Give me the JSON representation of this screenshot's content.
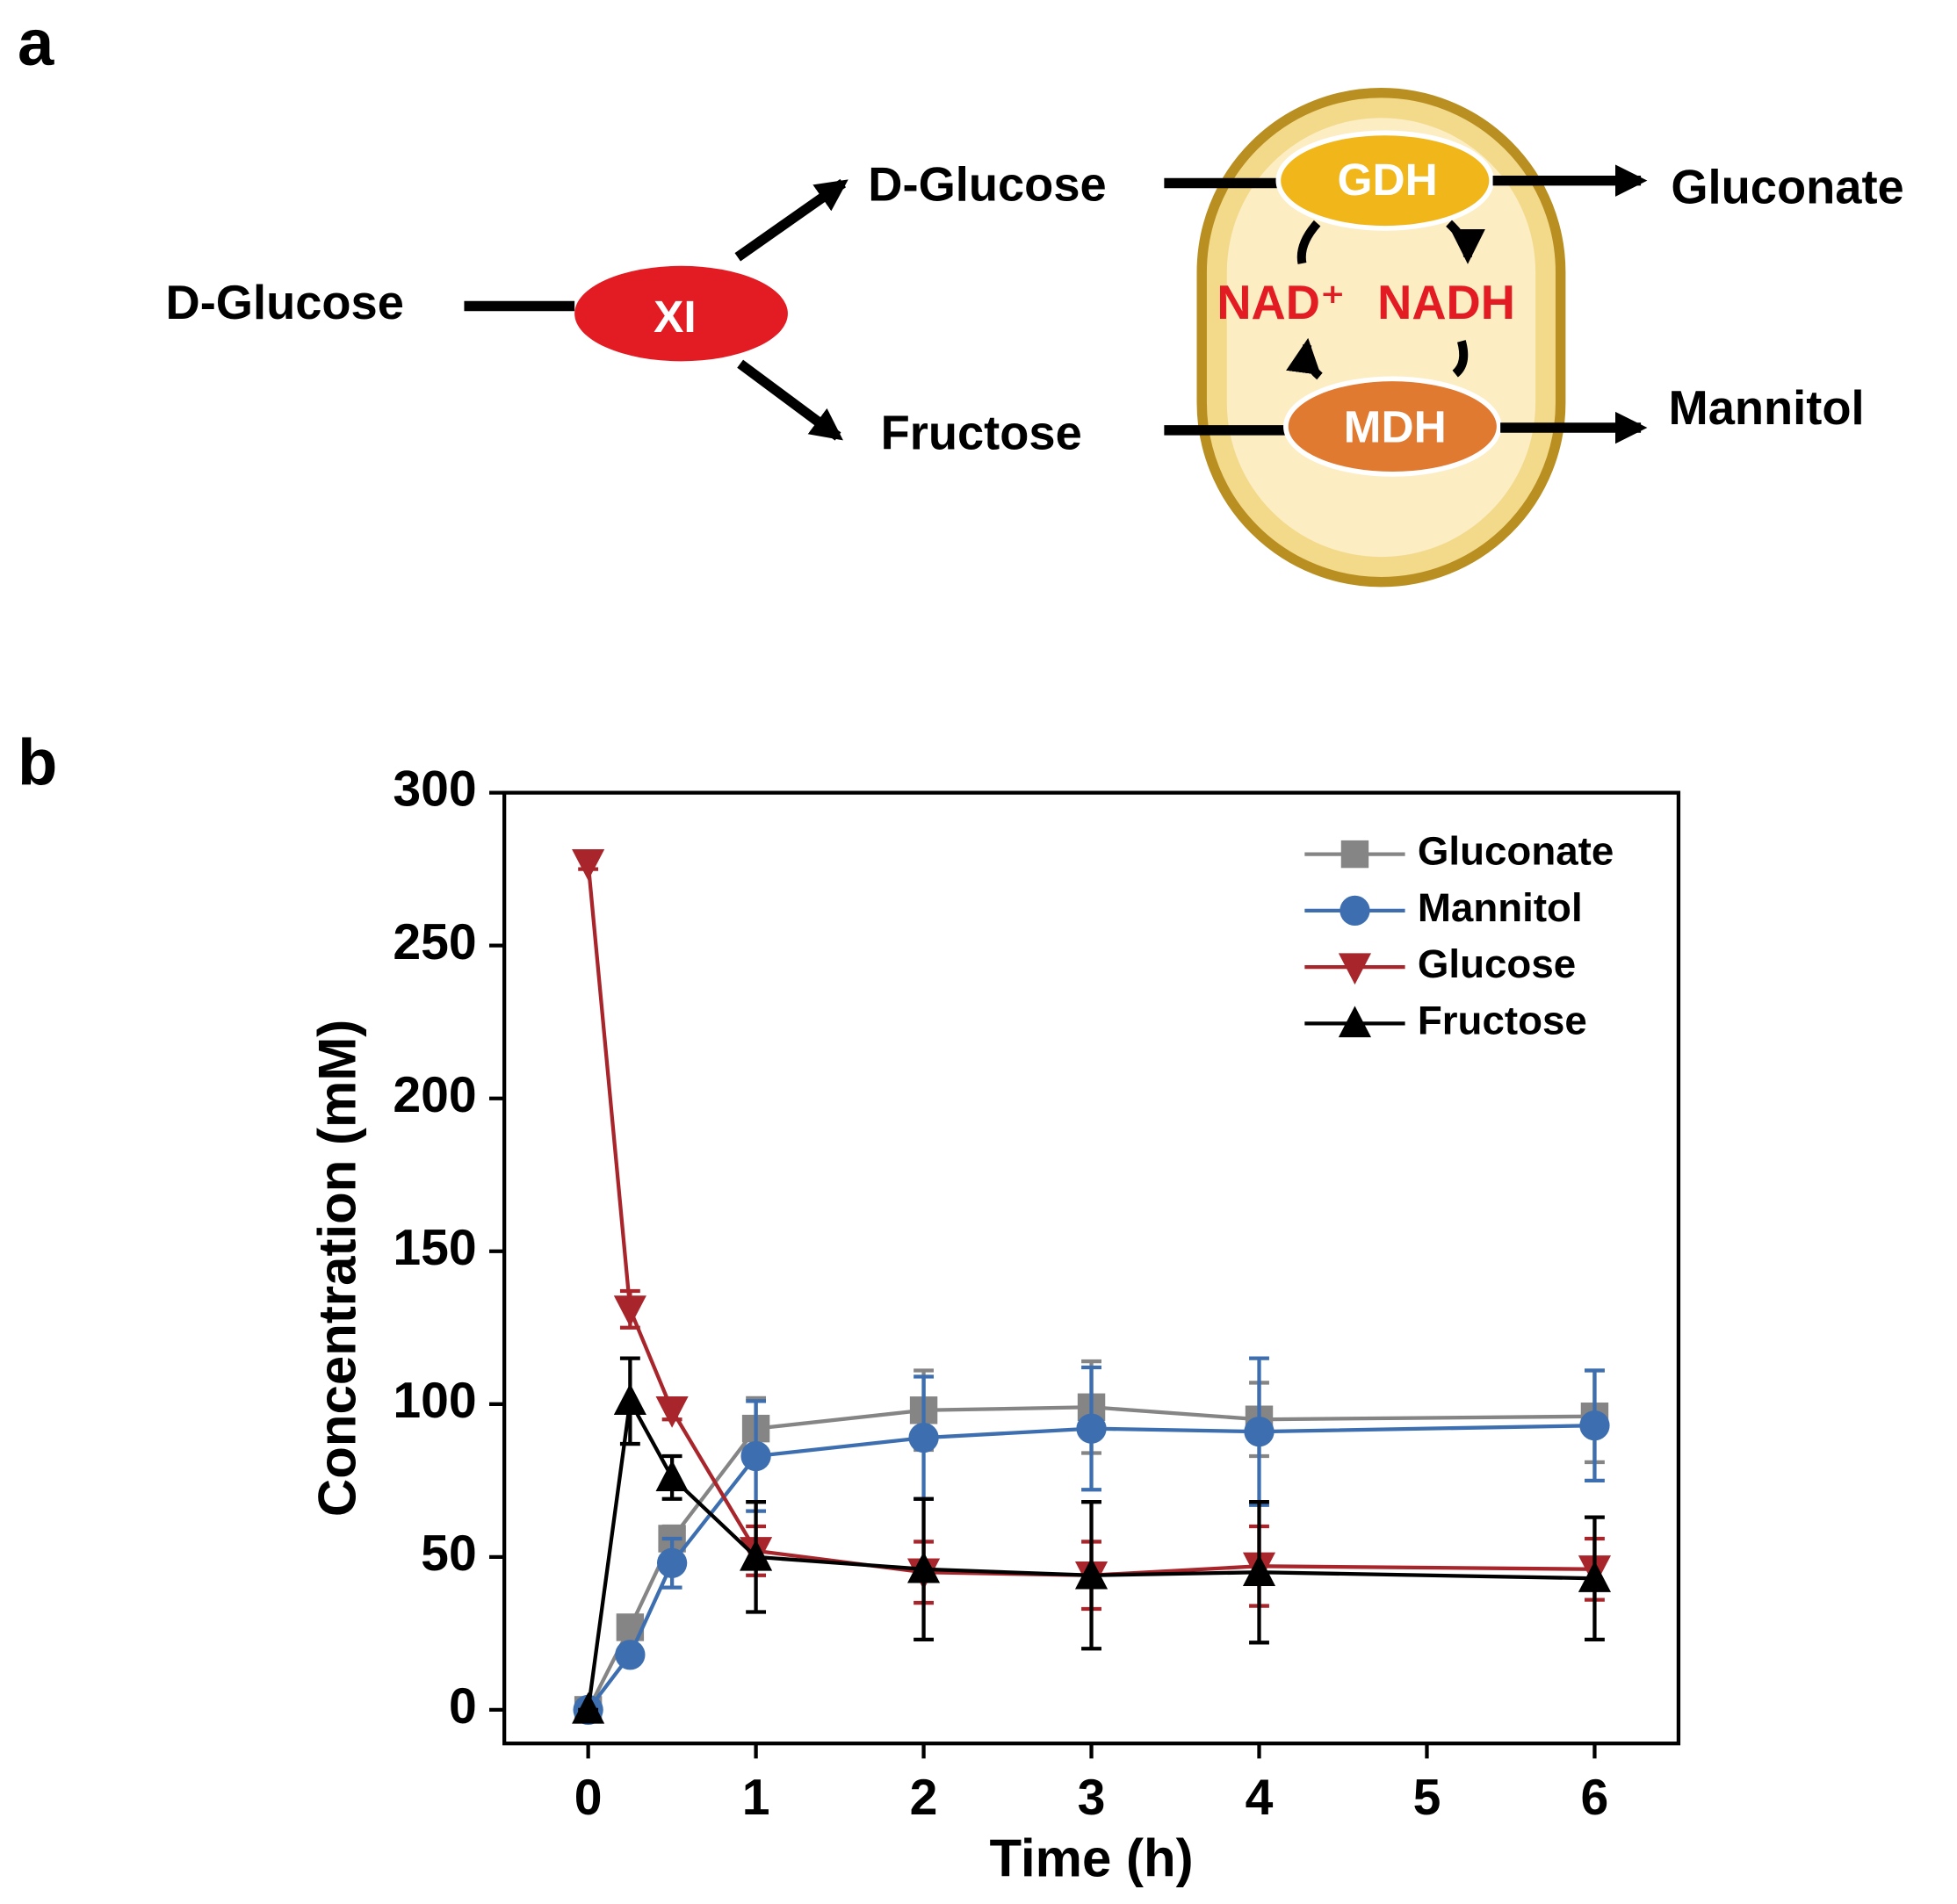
{
  "panel_labels": [
    "a",
    "b"
  ],
  "diagram": {
    "substrate": "D-Glucose",
    "enzyme1": "XI",
    "product1": "D-Glucose",
    "product2": "Fructose",
    "enzyme2": "GDH",
    "enzyme3": "MDH",
    "cofactor1": "NAD⁺",
    "cofactor2": "NADH",
    "final1": "Gluconate",
    "final2": "Mannitol"
  },
  "chart_data": {
    "type": "line",
    "x_label": "Time (h)",
    "y_label": "Concentration (mM)",
    "x": [
      0,
      0.25,
      0.5,
      1,
      2,
      3,
      4,
      6
    ],
    "xlim": [
      -0.5,
      6.5
    ],
    "xticks": [
      0,
      1,
      2,
      3,
      4,
      5,
      6
    ],
    "ylim": [
      -11,
      300
    ],
    "yticks": [
      0,
      50,
      100,
      150,
      200,
      250,
      300
    ],
    "legend": "upper right",
    "series": [
      {
        "name": "Gluconate",
        "color": "#858585",
        "marker": "square",
        "values": [
          0,
          27,
          56,
          92,
          98,
          99,
          95,
          96
        ],
        "errors": [
          0,
          3,
          4,
          10,
          13,
          15,
          12,
          15
        ]
      },
      {
        "name": "Mannitol",
        "color": "#3d6fb0",
        "marker": "circle",
        "values": [
          0,
          18,
          48,
          83,
          89,
          92,
          91,
          93
        ],
        "errors": [
          0,
          3,
          8,
          18,
          20,
          20,
          24,
          18
        ]
      },
      {
        "name": "Glucose",
        "color": "#a8262b",
        "marker": "triangle-down",
        "values": [
          277,
          131,
          98,
          52,
          45,
          44,
          47,
          46
        ],
        "errors": [
          2,
          6,
          3,
          8,
          10,
          11,
          13,
          10
        ]
      },
      {
        "name": "Fructose",
        "color": "#000000",
        "marker": "triangle-up",
        "values": [
          0,
          101,
          76,
          50,
          46,
          44,
          45,
          43
        ],
        "errors": [
          0,
          14,
          7,
          18,
          23,
          24,
          23,
          20
        ]
      }
    ]
  }
}
